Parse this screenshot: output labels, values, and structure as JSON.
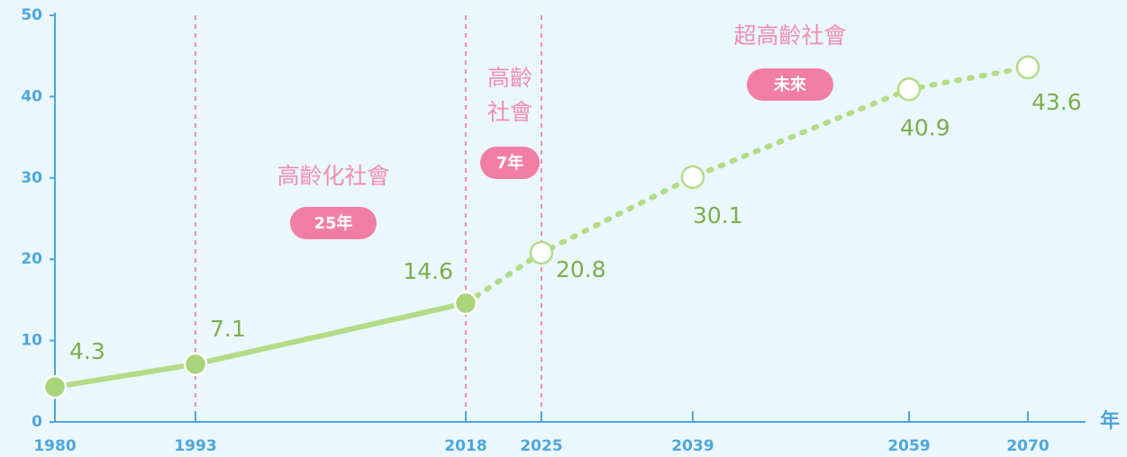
{
  "chart_data": {
    "type": "line",
    "x": [
      1980,
      1993,
      2018,
      2025,
      2039,
      2059,
      2070
    ],
    "series": [
      {
        "color": "#b3dc87",
        "marker_color": "#a8d47a",
        "label_color": "#7eae4c",
        "values": [
          4.3,
          7.1,
          14.6,
          20.8,
          30.1,
          40.9,
          43.6
        ]
      }
    ],
    "projected_from": 2018,
    "xlim": [
      1980,
      2075
    ],
    "xticks": [
      1980,
      1993,
      2018,
      2025,
      2039,
      2059,
      2070
    ],
    "ylim": [
      0,
      50
    ],
    "yticks": [
      0,
      10,
      20,
      30,
      40,
      50
    ],
    "xlabel": "年",
    "grid": false,
    "vlines": [
      1993,
      2018,
      2025
    ],
    "annotations": [
      {
        "lines": [
          "高齡化社會"
        ],
        "badge": "25年"
      },
      {
        "lines": [
          "高齡",
          "社會"
        ],
        "badge": "7年"
      },
      {
        "lines": [
          "超高齡社會"
        ],
        "badge": "未來"
      }
    ]
  }
}
